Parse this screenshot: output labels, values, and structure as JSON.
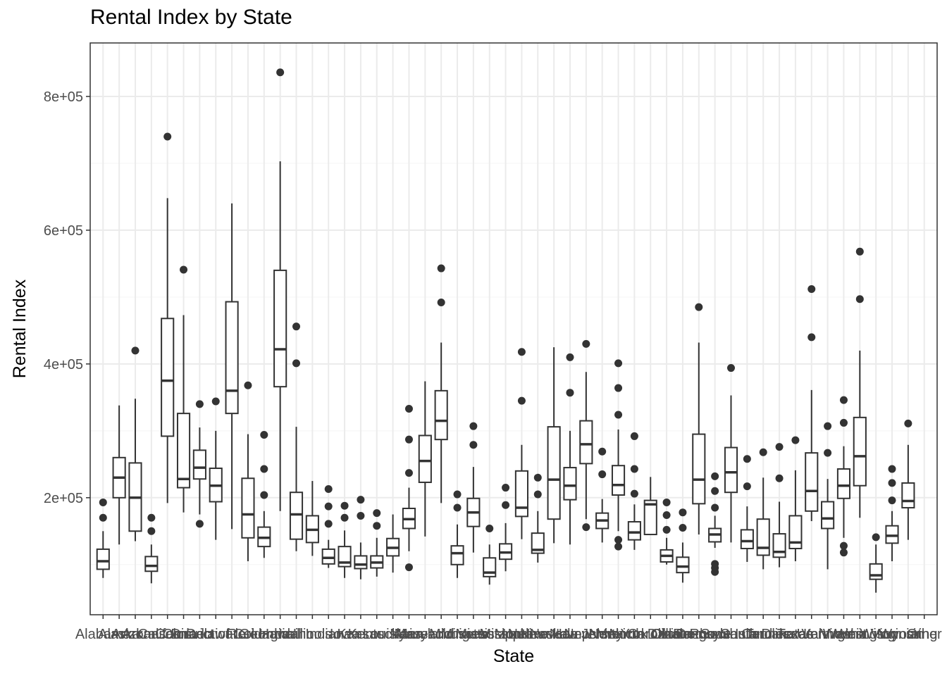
{
  "chart_data": {
    "type": "boxplot",
    "title": "Rental Index by State",
    "xlabel": "State",
    "ylabel": "Rental Index",
    "ylim": [
      25000,
      880000
    ],
    "yticks": [
      200000,
      400000,
      600000,
      800000
    ],
    "ytick_labels": [
      "2e+05",
      "4e+05",
      "6e+05",
      "8e+05"
    ],
    "grid": true,
    "colors": {
      "box_stroke": "#333333",
      "grid_major": "#ebebeb",
      "grid_minor": "#f5f5f5",
      "panel_border": "#333333",
      "tick_text": "#4d4d4d"
    },
    "categories": [
      "Alabama",
      "Alaska",
      "Arizona",
      "Arkansas",
      "California",
      "Colorado",
      "Connecticut",
      "Delaware",
      "District of Columbia",
      "Florida",
      "Georgia",
      "Hawaii",
      "Idaho",
      "Illinois",
      "Indiana",
      "Iowa",
      "Kansas",
      "Kentucky",
      "Louisiana",
      "Maine",
      "Maryland",
      "Massachusetts",
      "Michigan",
      "Minnesota",
      "Mississippi",
      "Missouri",
      "Montana",
      "Nebraska",
      "Nevada",
      "New Hampshire",
      "New Jersey",
      "New Mexico",
      "New York",
      "North Carolina",
      "North Dakota",
      "Ohio",
      "Oklahoma",
      "Oregon",
      "Pennsylvania",
      "Rhode Island",
      "South Carolina",
      "South Dakota",
      "Tennessee",
      "Texas",
      "Utah",
      "Vermont",
      "Virginia",
      "Washington",
      "West Virginia",
      "Wisconsin",
      "Wyoming",
      "Other"
    ],
    "boxes": [
      {
        "min": 80000,
        "q1": 93000,
        "median": 105000,
        "q3": 123000,
        "max": 150000,
        "outliers": [
          170000,
          193000
        ]
      },
      {
        "min": 130000,
        "q1": 200000,
        "median": 230000,
        "q3": 260000,
        "max": 338000,
        "outliers": []
      },
      {
        "min": 135000,
        "q1": 150000,
        "median": 200000,
        "q3": 252000,
        "max": 348000,
        "outliers": [
          420000
        ]
      },
      {
        "min": 72000,
        "q1": 90000,
        "median": 98000,
        "q3": 112000,
        "max": 130000,
        "outliers": [
          150000,
          170000
        ]
      },
      {
        "min": 192000,
        "q1": 292000,
        "median": 375000,
        "q3": 468000,
        "max": 648000,
        "outliers": [
          740000
        ]
      },
      {
        "min": 178000,
        "q1": 215000,
        "median": 228000,
        "q3": 326000,
        "max": 473000,
        "outliers": [
          541000
        ]
      },
      {
        "min": 175000,
        "q1": 228000,
        "median": 245000,
        "q3": 271000,
        "max": 305000,
        "outliers": [
          161000,
          340000
        ]
      },
      {
        "min": 137000,
        "q1": 194000,
        "median": 218000,
        "q3": 244000,
        "max": 300000,
        "outliers": [
          344000
        ]
      },
      {
        "min": 153000,
        "q1": 326000,
        "median": 360000,
        "q3": 493000,
        "max": 640000,
        "outliers": []
      },
      {
        "min": 105000,
        "q1": 140000,
        "median": 175000,
        "q3": 229000,
        "max": 295000,
        "outliers": [
          368000
        ]
      },
      {
        "min": 110000,
        "q1": 127000,
        "median": 140000,
        "q3": 156000,
        "max": 180000,
        "outliers": [
          204000,
          243000,
          294000
        ]
      },
      {
        "min": 180000,
        "q1": 366000,
        "median": 422000,
        "q3": 540000,
        "max": 703000,
        "outliers": [
          836000
        ]
      },
      {
        "min": 120000,
        "q1": 138000,
        "median": 175000,
        "q3": 208000,
        "max": 306000,
        "outliers": [
          401000,
          456000
        ]
      },
      {
        "min": 113000,
        "q1": 133000,
        "median": 152000,
        "q3": 173000,
        "max": 225000,
        "outliers": []
      },
      {
        "min": 95000,
        "q1": 101000,
        "median": 110000,
        "q3": 123000,
        "max": 137000,
        "outliers": [
          161000,
          187000,
          213000
        ]
      },
      {
        "min": 80000,
        "q1": 97000,
        "median": 103000,
        "q3": 127000,
        "max": 151000,
        "outliers": [
          170000,
          188000
        ]
      },
      {
        "min": 78000,
        "q1": 94000,
        "median": 100000,
        "q3": 113000,
        "max": 133000,
        "outliers": [
          173000,
          197000
        ]
      },
      {
        "min": 82000,
        "q1": 95000,
        "median": 103000,
        "q3": 113000,
        "max": 140000,
        "outliers": [
          158000,
          177000
        ]
      },
      {
        "min": 88000,
        "q1": 113000,
        "median": 125000,
        "q3": 139000,
        "max": 175000,
        "outliers": []
      },
      {
        "min": 120000,
        "q1": 154000,
        "median": 168000,
        "q3": 184000,
        "max": 215000,
        "outliers": [
          96000,
          237000,
          287000,
          333000
        ]
      },
      {
        "min": 142000,
        "q1": 223000,
        "median": 255000,
        "q3": 293000,
        "max": 374000,
        "outliers": []
      },
      {
        "min": 192000,
        "q1": 287000,
        "median": 315000,
        "q3": 360000,
        "max": 432000,
        "outliers": [
          492000,
          543000
        ]
      },
      {
        "min": 80000,
        "q1": 100000,
        "median": 117000,
        "q3": 128000,
        "max": 160000,
        "outliers": [
          185000,
          205000
        ]
      },
      {
        "min": 118000,
        "q1": 157000,
        "median": 178000,
        "q3": 199000,
        "max": 246000,
        "outliers": [
          279000,
          307000
        ]
      },
      {
        "min": 70000,
        "q1": 82000,
        "median": 88000,
        "q3": 110000,
        "max": 130000,
        "outliers": [
          154000
        ]
      },
      {
        "min": 90000,
        "q1": 108000,
        "median": 118000,
        "q3": 131000,
        "max": 162000,
        "outliers": [
          189000,
          215000
        ]
      },
      {
        "min": 138000,
        "q1": 172000,
        "median": 185000,
        "q3": 240000,
        "max": 279000,
        "outliers": [
          345000,
          418000
        ]
      },
      {
        "min": 103000,
        "q1": 117000,
        "median": 122000,
        "q3": 147000,
        "max": 180000,
        "outliers": [
          205000,
          230000
        ]
      },
      {
        "min": 132000,
        "q1": 168000,
        "median": 227000,
        "q3": 306000,
        "max": 425000,
        "outliers": []
      },
      {
        "min": 130000,
        "q1": 197000,
        "median": 218000,
        "q3": 245000,
        "max": 300000,
        "outliers": [
          357000,
          410000
        ]
      },
      {
        "min": 168000,
        "q1": 251000,
        "median": 280000,
        "q3": 315000,
        "max": 388000,
        "outliers": [
          156000,
          430000
        ]
      },
      {
        "min": 133000,
        "q1": 154000,
        "median": 166000,
        "q3": 177000,
        "max": 198000,
        "outliers": [
          235000,
          269000
        ]
      },
      {
        "min": 150000,
        "q1": 204000,
        "median": 219000,
        "q3": 248000,
        "max": 302000,
        "outliers": [
          127000,
          137000,
          324000,
          364000,
          401000
        ]
      },
      {
        "min": 122000,
        "q1": 137000,
        "median": 148000,
        "q3": 164000,
        "max": 190000,
        "outliers": [
          206000,
          243000,
          292000
        ]
      },
      {
        "min": 145000,
        "q1": 145000,
        "median": 190000,
        "q3": 196000,
        "max": 231000,
        "outliers": []
      },
      {
        "min": 100000,
        "q1": 104000,
        "median": 113000,
        "q3": 122000,
        "max": 140000,
        "outliers": [
          152000,
          174000,
          193000
        ]
      },
      {
        "min": 73000,
        "q1": 88000,
        "median": 97000,
        "q3": 111000,
        "max": 133000,
        "outliers": [
          155000,
          178000
        ]
      },
      {
        "min": 145000,
        "q1": 191000,
        "median": 227000,
        "q3": 295000,
        "max": 432000,
        "outliers": [
          485000
        ]
      },
      {
        "min": 125000,
        "q1": 134000,
        "median": 145000,
        "q3": 154000,
        "max": 173000,
        "outliers": [
          89000,
          95000,
          101000,
          185000,
          210000,
          232000
        ]
      },
      {
        "min": 133000,
        "q1": 208000,
        "median": 238000,
        "q3": 275000,
        "max": 353000,
        "outliers": [
          394000
        ]
      },
      {
        "min": 104000,
        "q1": 124000,
        "median": 135000,
        "q3": 152000,
        "max": 187000,
        "outliers": [
          217000,
          258000
        ]
      },
      {
        "min": 93000,
        "q1": 114000,
        "median": 125000,
        "q3": 168000,
        "max": 230000,
        "outliers": [
          268000
        ]
      },
      {
        "min": 96000,
        "q1": 111000,
        "median": 119000,
        "q3": 146000,
        "max": 194000,
        "outliers": [
          229000,
          276000
        ]
      },
      {
        "min": 105000,
        "q1": 124000,
        "median": 133000,
        "q3": 173000,
        "max": 241000,
        "outliers": [
          286000
        ]
      },
      {
        "min": 165000,
        "q1": 180000,
        "median": 210000,
        "q3": 267000,
        "max": 361000,
        "outliers": [
          440000,
          512000
        ]
      },
      {
        "min": 93000,
        "q1": 154000,
        "median": 169000,
        "q3": 194000,
        "max": 228000,
        "outliers": [
          267000,
          307000
        ]
      },
      {
        "min": 140000,
        "q1": 199000,
        "median": 218000,
        "q3": 243000,
        "max": 277000,
        "outliers": [
          118000,
          128000,
          312000,
          346000
        ]
      },
      {
        "min": 170000,
        "q1": 218000,
        "median": 262000,
        "q3": 320000,
        "max": 420000,
        "outliers": [
          497000,
          568000
        ]
      },
      {
        "min": 58000,
        "q1": 78000,
        "median": 84000,
        "q3": 101000,
        "max": 130000,
        "outliers": [
          141000
        ]
      },
      {
        "min": 105000,
        "q1": 132000,
        "median": 143000,
        "q3": 158000,
        "max": 180000,
        "outliers": [
          196000,
          222000,
          243000
        ]
      },
      {
        "min": 137000,
        "q1": 185000,
        "median": 195000,
        "q3": 222000,
        "max": 279000,
        "outliers": [
          311000
        ]
      },
      null
    ]
  }
}
